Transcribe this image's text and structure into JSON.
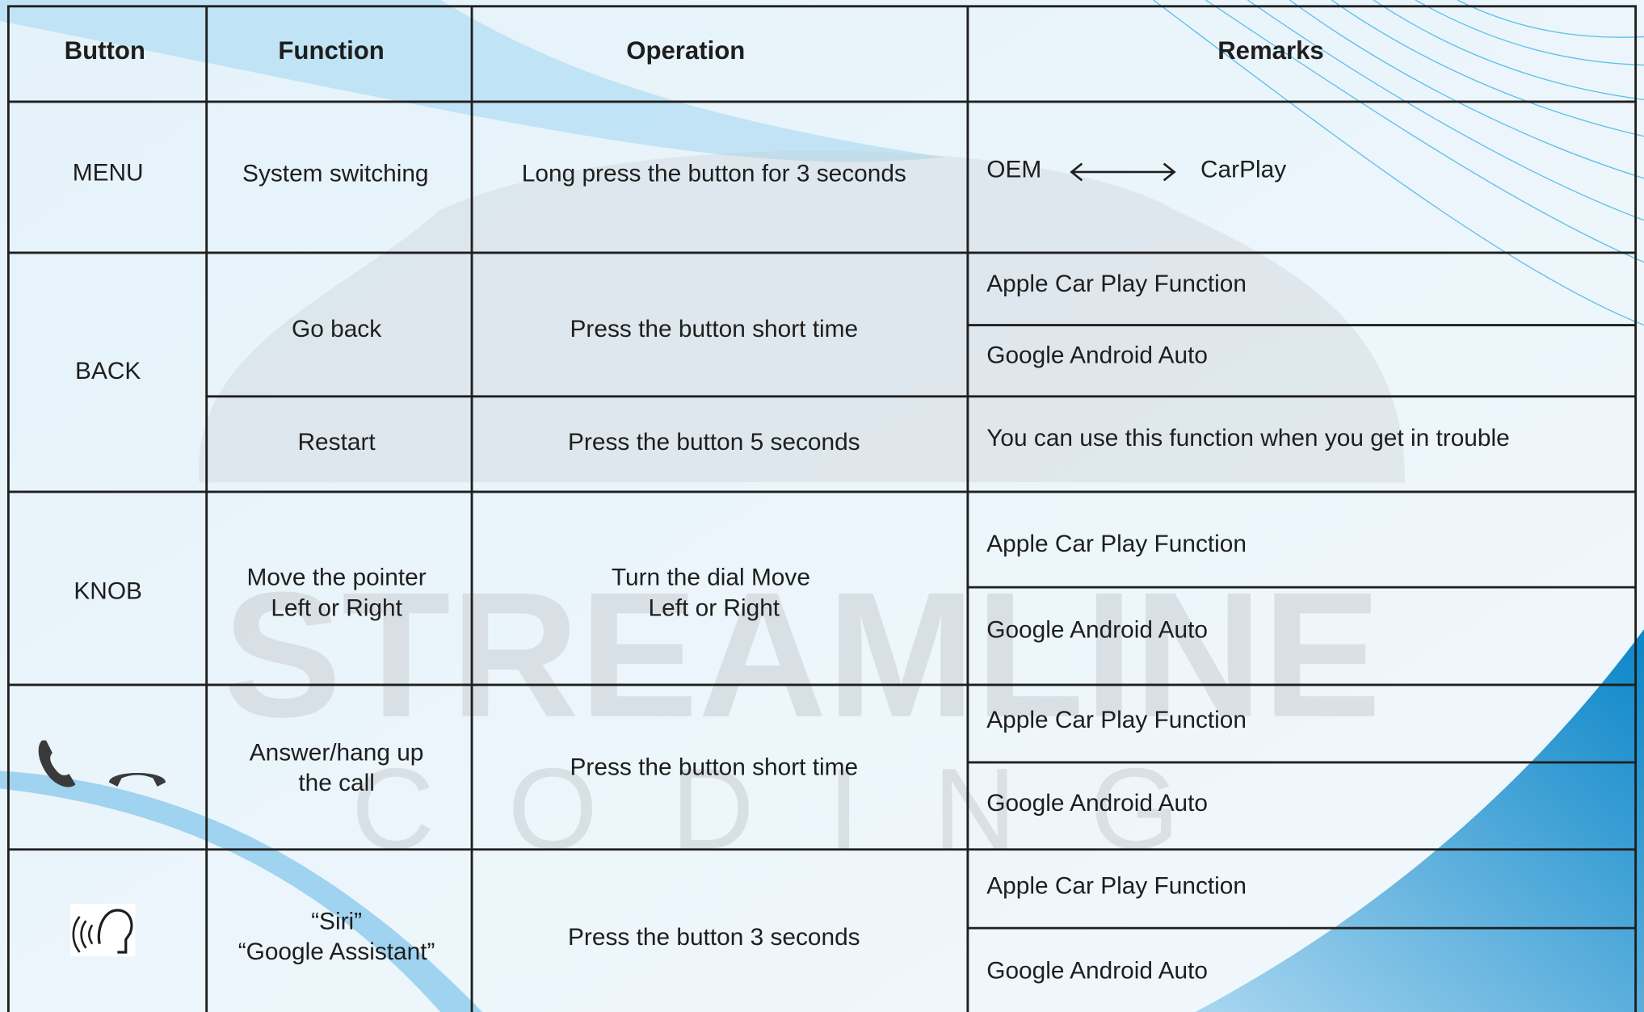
{
  "watermark": {
    "line1": "STREAMLINE",
    "line2": "CODING"
  },
  "table": {
    "headers": [
      "Button",
      "Function",
      "Operation",
      "Remarks"
    ],
    "rows": [
      {
        "button": "MENU",
        "function": [
          "System switching"
        ],
        "operation": [
          "Long press the button for 3 seconds"
        ],
        "remarks": [
          "OEM",
          "CarPlay"
        ]
      },
      {
        "button": "BACK",
        "function": [
          "Go back"
        ],
        "operation": [
          "Press the button short time"
        ],
        "remarks": [
          "Apple Car Play Function",
          "Google Android Auto"
        ]
      },
      {
        "function": [
          "Restart"
        ],
        "operation": [
          "Press the button 5 seconds"
        ],
        "remarks": [
          "You can use this function when you get in trouble"
        ]
      },
      {
        "button": "KNOB",
        "function": [
          "Move the pointer",
          "Left or Right"
        ],
        "operation": [
          "Turn the dial Move",
          "Left or Right"
        ],
        "remarks": [
          "Apple Car Play Function",
          "Google Android Auto"
        ]
      },
      {
        "function": [
          "Answer/hang up",
          "the call"
        ],
        "operation": [
          "Press the button short time"
        ],
        "remarks": [
          "Apple Car Play Function",
          "Google Android Auto"
        ]
      },
      {
        "function": [
          "“Siri”",
          "“Google Assistant”"
        ],
        "operation": [
          "Press the button 3 seconds"
        ],
        "remarks": [
          "Apple Car Play Function",
          "Google Android Auto"
        ]
      }
    ]
  }
}
